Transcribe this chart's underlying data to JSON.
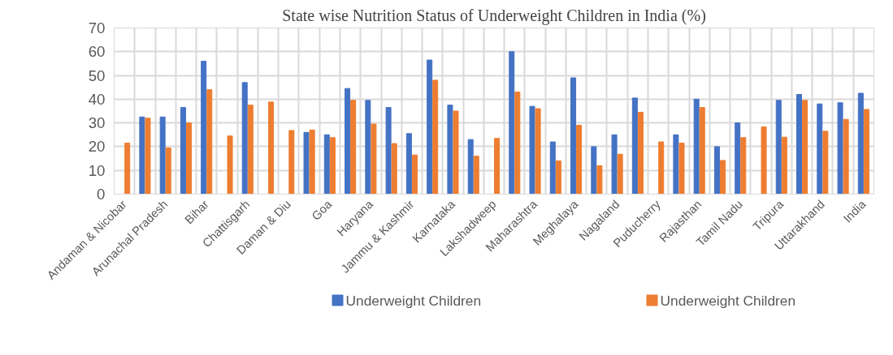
{
  "chart_data": {
    "type": "bar",
    "title": "State wise Nutrition Status of Underweight Children in India (%)",
    "categories": [
      "Andaman & Nicobar",
      null,
      "Arunachal Pradesh",
      null,
      "Bihar",
      null,
      "Chattisgarh",
      null,
      "Daman & Diu",
      null,
      "Goa",
      null,
      "Haryana",
      null,
      "Jammu & Kashmir",
      null,
      "Karnataka",
      null,
      "Lakshadweep",
      null,
      "Maharashtra",
      null,
      "Meghalaya",
      null,
      "Nagaland",
      null,
      "Puducherry",
      null,
      "Rajasthan",
      null,
      "Tamil Nadu",
      null,
      "Tripura",
      null,
      "Uttarakhand",
      null,
      "India"
    ],
    "series": [
      {
        "name": "Underweight Children",
        "color": "#4472c4",
        "values": [
          null,
          32.5,
          32.5,
          36.5,
          56,
          null,
          47,
          null,
          null,
          26,
          25,
          44.5,
          39.5,
          36.5,
          25.5,
          56.5,
          37.5,
          23,
          null,
          60,
          37,
          22,
          49,
          20,
          25,
          40.5,
          null,
          25,
          40,
          20,
          30,
          null,
          39.5,
          42,
          38,
          38.5,
          42.5
        ]
      },
      {
        "name": "Underweight Children",
        "color": "#ed7d31",
        "values": [
          21.5,
          32,
          19.5,
          30,
          44,
          24.5,
          37.5,
          38.8,
          26.8,
          27,
          23.8,
          39.5,
          29.5,
          21.3,
          16.5,
          48,
          35,
          16,
          23.5,
          43,
          36,
          14,
          29,
          12,
          16.8,
          34.5,
          22,
          21.5,
          36.5,
          14.2,
          23.8,
          28.3,
          24,
          39.5,
          26.5,
          31.5,
          35.7
        ]
      }
    ],
    "ylim": [
      0,
      70
    ],
    "yticks": [
      0,
      10,
      20,
      30,
      40,
      50,
      60,
      70
    ],
    "grid": true,
    "legend": "bottom"
  }
}
